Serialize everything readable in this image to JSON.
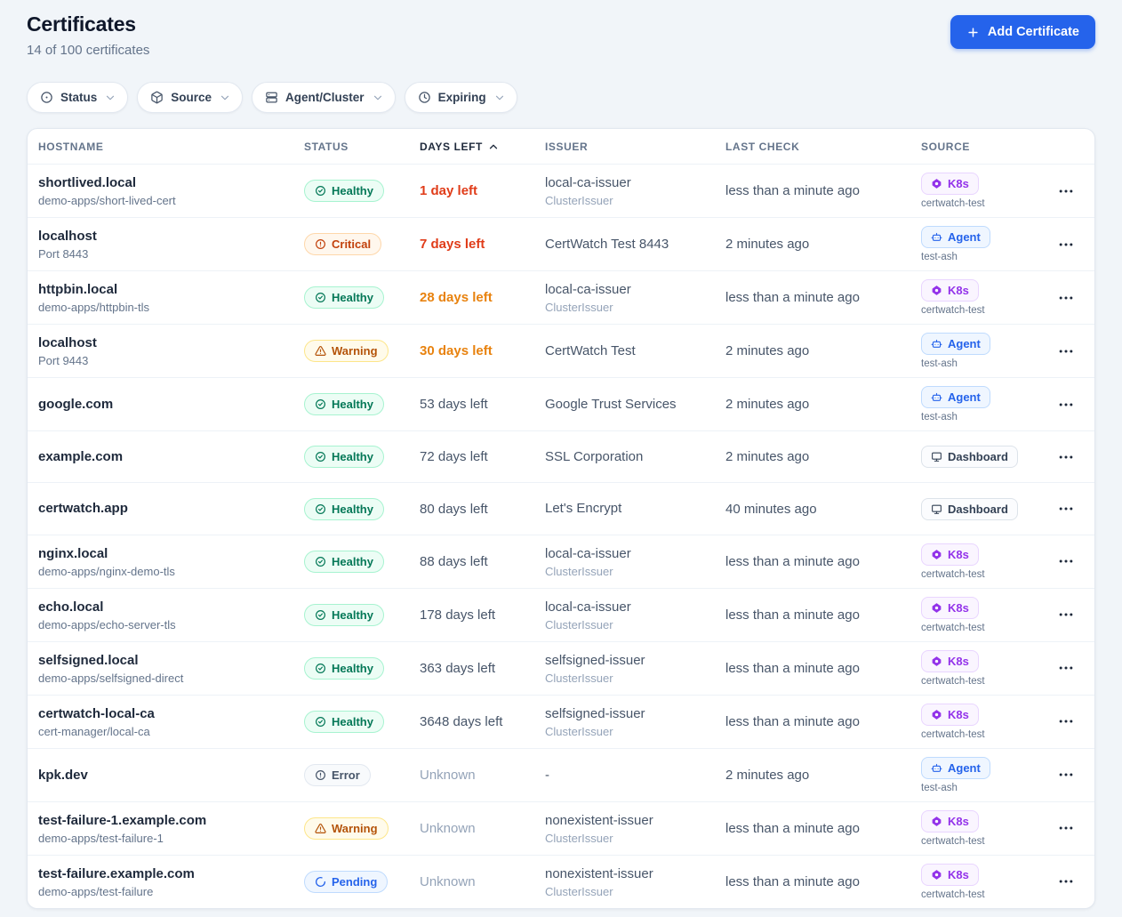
{
  "header": {
    "title": "Certificates",
    "subtitle": "14 of 100 certificates",
    "add_button_label": "Add Certificate",
    "add_button_icon": "plus-icon"
  },
  "filters": [
    {
      "label": "Status",
      "icon": "circle-dot-icon"
    },
    {
      "label": "Source",
      "icon": "package-icon"
    },
    {
      "label": "Agent/Cluster",
      "icon": "server-icon"
    },
    {
      "label": "Expiring",
      "icon": "clock-icon"
    }
  ],
  "table": {
    "columns": [
      "Hostname",
      "Status",
      "Days Left",
      "Issuer",
      "Last Check",
      "Source"
    ],
    "sorted_column": "Days Left",
    "sort_direction": "ascending",
    "sort_icon": "chevron-up-icon",
    "row_menu_icon": "ellipsis-icon",
    "rows": [
      {
        "hostname": "shortlived.local",
        "hostname_sub": "demo-apps/short-lived-cert",
        "status": "Healthy",
        "status_variant": "healthy",
        "status_icon": "check-circle-icon",
        "days_left": "1 day left",
        "days_variant": "critical",
        "issuer": "local-ca-issuer",
        "issuer_sub": "ClusterIssuer",
        "last_check": "less than a minute ago",
        "source": "K8s",
        "source_variant": "k8s",
        "source_icon": "helm-icon",
        "source_sub": "certwatch-test"
      },
      {
        "hostname": "localhost",
        "hostname_sub": "Port 8443",
        "status": "Critical",
        "status_variant": "critical",
        "status_icon": "alert-circle-icon",
        "days_left": "7 days left",
        "days_variant": "critical",
        "issuer": "CertWatch Test 8443",
        "issuer_sub": "",
        "last_check": "2 minutes ago",
        "source": "Agent",
        "source_variant": "agent",
        "source_icon": "bot-icon",
        "source_sub": "test-ash"
      },
      {
        "hostname": "httpbin.local",
        "hostname_sub": "demo-apps/httpbin-tls",
        "status": "Healthy",
        "status_variant": "healthy",
        "status_icon": "check-circle-icon",
        "days_left": "28 days left",
        "days_variant": "warning",
        "issuer": "local-ca-issuer",
        "issuer_sub": "ClusterIssuer",
        "last_check": "less than a minute ago",
        "source": "K8s",
        "source_variant": "k8s",
        "source_icon": "helm-icon",
        "source_sub": "certwatch-test"
      },
      {
        "hostname": "localhost",
        "hostname_sub": "Port 9443",
        "status": "Warning",
        "status_variant": "warning",
        "status_icon": "alert-triangle-icon",
        "days_left": "30 days left",
        "days_variant": "warning",
        "issuer": "CertWatch Test",
        "issuer_sub": "",
        "last_check": "2 minutes ago",
        "source": "Agent",
        "source_variant": "agent",
        "source_icon": "bot-icon",
        "source_sub": "test-ash"
      },
      {
        "hostname": "google.com",
        "hostname_sub": "",
        "status": "Healthy",
        "status_variant": "healthy",
        "status_icon": "check-circle-icon",
        "days_left": "53 days left",
        "days_variant": "normal",
        "issuer": "Google Trust Services",
        "issuer_sub": "",
        "last_check": "2 minutes ago",
        "source": "Agent",
        "source_variant": "agent",
        "source_icon": "bot-icon",
        "source_sub": "test-ash"
      },
      {
        "hostname": "example.com",
        "hostname_sub": "",
        "status": "Healthy",
        "status_variant": "healthy",
        "status_icon": "check-circle-icon",
        "days_left": "72 days left",
        "days_variant": "normal",
        "issuer": "SSL Corporation",
        "issuer_sub": "",
        "last_check": "2 minutes ago",
        "source": "Dashboard",
        "source_variant": "dashboard",
        "source_icon": "monitor-icon",
        "source_sub": ""
      },
      {
        "hostname": "certwatch.app",
        "hostname_sub": "",
        "status": "Healthy",
        "status_variant": "healthy",
        "status_icon": "check-circle-icon",
        "days_left": "80 days left",
        "days_variant": "normal",
        "issuer": "Let's Encrypt",
        "issuer_sub": "",
        "last_check": "40 minutes ago",
        "source": "Dashboard",
        "source_variant": "dashboard",
        "source_icon": "monitor-icon",
        "source_sub": ""
      },
      {
        "hostname": "nginx.local",
        "hostname_sub": "demo-apps/nginx-demo-tls",
        "status": "Healthy",
        "status_variant": "healthy",
        "status_icon": "check-circle-icon",
        "days_left": "88 days left",
        "days_variant": "normal",
        "issuer": "local-ca-issuer",
        "issuer_sub": "ClusterIssuer",
        "last_check": "less than a minute ago",
        "source": "K8s",
        "source_variant": "k8s",
        "source_icon": "helm-icon",
        "source_sub": "certwatch-test"
      },
      {
        "hostname": "echo.local",
        "hostname_sub": "demo-apps/echo-server-tls",
        "status": "Healthy",
        "status_variant": "healthy",
        "status_icon": "check-circle-icon",
        "days_left": "178 days left",
        "days_variant": "normal",
        "issuer": "local-ca-issuer",
        "issuer_sub": "ClusterIssuer",
        "last_check": "less than a minute ago",
        "source": "K8s",
        "source_variant": "k8s",
        "source_icon": "helm-icon",
        "source_sub": "certwatch-test"
      },
      {
        "hostname": "selfsigned.local",
        "hostname_sub": "demo-apps/selfsigned-direct",
        "status": "Healthy",
        "status_variant": "healthy",
        "status_icon": "check-circle-icon",
        "days_left": "363 days left",
        "days_variant": "normal",
        "issuer": "selfsigned-issuer",
        "issuer_sub": "ClusterIssuer",
        "last_check": "less than a minute ago",
        "source": "K8s",
        "source_variant": "k8s",
        "source_icon": "helm-icon",
        "source_sub": "certwatch-test"
      },
      {
        "hostname": "certwatch-local-ca",
        "hostname_sub": "cert-manager/local-ca",
        "status": "Healthy",
        "status_variant": "healthy",
        "status_icon": "check-circle-icon",
        "days_left": "3648 days left",
        "days_variant": "normal",
        "issuer": "selfsigned-issuer",
        "issuer_sub": "ClusterIssuer",
        "last_check": "less than a minute ago",
        "source": "K8s",
        "source_variant": "k8s",
        "source_icon": "helm-icon",
        "source_sub": "certwatch-test"
      },
      {
        "hostname": "kpk.dev",
        "hostname_sub": "",
        "status": "Error",
        "status_variant": "error",
        "status_icon": "alert-circle-icon",
        "days_left": "Unknown",
        "days_variant": "unknown",
        "issuer": "-",
        "issuer_sub": "",
        "last_check": "2 minutes ago",
        "source": "Agent",
        "source_variant": "agent",
        "source_icon": "bot-icon",
        "source_sub": "test-ash"
      },
      {
        "hostname": "test-failure-1.example.com",
        "hostname_sub": "demo-apps/test-failure-1",
        "status": "Warning",
        "status_variant": "warning",
        "status_icon": "alert-triangle-icon",
        "days_left": "Unknown",
        "days_variant": "unknown",
        "issuer": "nonexistent-issuer",
        "issuer_sub": "ClusterIssuer",
        "last_check": "less than a minute ago",
        "source": "K8s",
        "source_variant": "k8s",
        "source_icon": "helm-icon",
        "source_sub": "certwatch-test"
      },
      {
        "hostname": "test-failure.example.com",
        "hostname_sub": "demo-apps/test-failure",
        "status": "Pending",
        "status_variant": "pending",
        "status_icon": "loader-icon",
        "days_left": "Unknown",
        "days_variant": "unknown",
        "issuer": "nonexistent-issuer",
        "issuer_sub": "ClusterIssuer",
        "last_check": "less than a minute ago",
        "source": "K8s",
        "source_variant": "k8s",
        "source_icon": "helm-icon",
        "source_sub": "certwatch-test"
      }
    ]
  },
  "colors": {
    "accent": "#2563eb",
    "page_background": "#f1f5f9",
    "status_healthy": "#047857",
    "status_critical": "#c2410c",
    "status_warning": "#b45309",
    "status_error": "#475569",
    "status_pending": "#2563eb",
    "source_k8s": "#9333ea",
    "source_agent": "#2563eb",
    "days_critical": "#e03c19",
    "days_warning": "#e8820e"
  }
}
